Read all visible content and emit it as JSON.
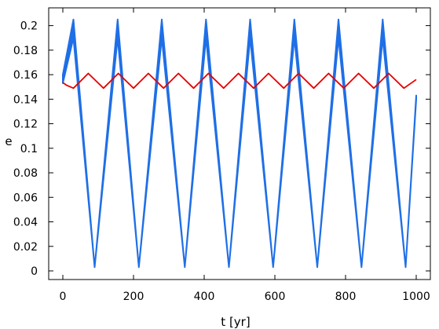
{
  "chart_data": {
    "type": "line",
    "xlabel": "t [yr]",
    "ylabel": "e",
    "xlim": [
      0,
      1000
    ],
    "ylim": [
      0,
      0.21
    ],
    "xticks": [
      0,
      200,
      400,
      600,
      800,
      1000
    ],
    "xtick_labels": [
      "0",
      "200",
      "400",
      "600",
      "800",
      "1000"
    ],
    "yticks": [
      0,
      0.02,
      0.04,
      0.06,
      0.08,
      0.1,
      0.12,
      0.14,
      0.16,
      0.18,
      0.2
    ],
    "ytick_labels": [
      "0",
      "0.02",
      "0.04",
      "0.06",
      "0.08",
      "0.1",
      "0.12",
      "0.14",
      "0.16",
      "0.18",
      "0.2"
    ],
    "grid": false,
    "series": [
      {
        "color": "#1f6fe6",
        "t": [
          0,
          30,
          90,
          155,
          215,
          280,
          345,
          405,
          470,
          530,
          595,
          655,
          720,
          780,
          845,
          905,
          970,
          1000
        ],
        "e_upper": [
          0.16,
          0.205,
          0.003,
          0.205,
          0.003,
          0.205,
          0.003,
          0.205,
          0.003,
          0.205,
          0.003,
          0.205,
          0.003,
          0.205,
          0.003,
          0.205,
          0.003,
          0.143
        ],
        "e_lower": [
          0.153,
          0.19,
          0.003,
          0.19,
          0.003,
          0.19,
          0.003,
          0.19,
          0.003,
          0.19,
          0.003,
          0.19,
          0.003,
          0.19,
          0.003,
          0.19,
          0.003,
          0.14
        ]
      },
      {
        "color": "#e60000",
        "t": [
          0,
          10,
          30,
          72,
          115,
          157,
          200,
          242,
          285,
          327,
          370,
          412,
          455,
          497,
          540,
          582,
          625,
          667,
          710,
          752,
          795,
          837,
          880,
          922,
          965,
          1000
        ],
        "e": [
          0.1535,
          0.1515,
          0.149,
          0.161,
          0.149,
          0.161,
          0.149,
          0.161,
          0.149,
          0.161,
          0.149,
          0.161,
          0.149,
          0.161,
          0.149,
          0.161,
          0.149,
          0.161,
          0.149,
          0.161,
          0.149,
          0.161,
          0.149,
          0.161,
          0.149,
          0.156
        ]
      }
    ]
  }
}
